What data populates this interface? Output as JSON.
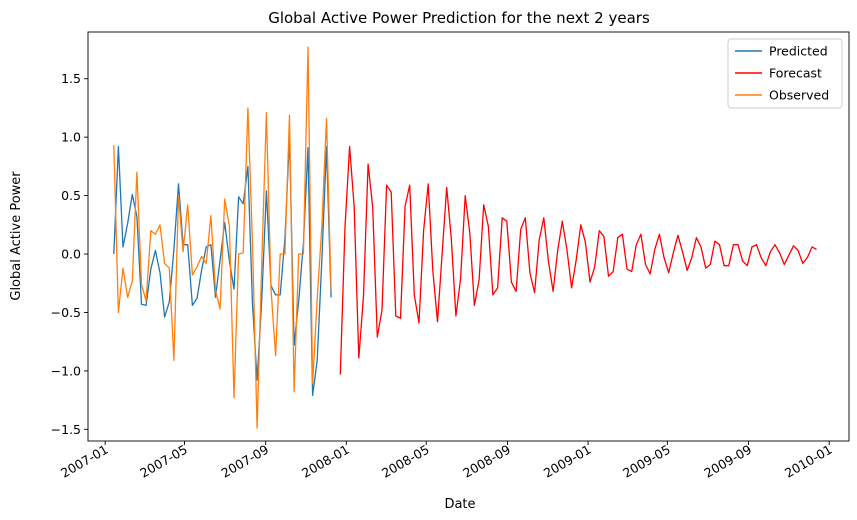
{
  "chart_data": {
    "type": "line",
    "title": "Global Active Power Prediction for the next 2 years",
    "xlabel": "Date",
    "ylabel": "Global Active Power",
    "x_axis_type": "date",
    "xlim": [
      "2006-12-06",
      "2010-01-31"
    ],
    "ylim": [
      -1.6,
      1.9
    ],
    "x_ticks": [
      "2007-01-01",
      "2007-05-01",
      "2007-09-01",
      "2008-01-01",
      "2008-05-01",
      "2008-09-01",
      "2009-01-01",
      "2009-05-01",
      "2009-09-01",
      "2010-01-01"
    ],
    "x_tick_labels": [
      "2007-01",
      "2007-05",
      "2007-09",
      "2008-01",
      "2008-05",
      "2008-09",
      "2009-01",
      "2009-05",
      "2009-09",
      "2010-01"
    ],
    "y_ticks": [
      -1.5,
      -1.0,
      -0.5,
      0.0,
      0.5,
      1.0,
      1.5
    ],
    "y_tick_labels": [
      "−1.5",
      "−1.0",
      "−0.5",
      "0.0",
      "0.5",
      "1.0",
      "1.5"
    ],
    "grid": false,
    "legend_position": "top-right",
    "series": [
      {
        "name": "Predicted",
        "color": "#1f77b4",
        "points": [
          [
            "2007-01-14",
            0.0
          ],
          [
            "2007-01-21",
            0.92
          ],
          [
            "2007-01-28",
            0.06
          ],
          [
            "2007-02-04",
            0.26
          ],
          [
            "2007-02-11",
            0.51
          ],
          [
            "2007-02-18",
            0.32
          ],
          [
            "2007-02-25",
            -0.43
          ],
          [
            "2007-03-04",
            -0.44
          ],
          [
            "2007-03-11",
            -0.13
          ],
          [
            "2007-03-18",
            0.03
          ],
          [
            "2007-03-25",
            -0.16
          ],
          [
            "2007-04-01",
            -0.54
          ],
          [
            "2007-04-08",
            -0.41
          ],
          [
            "2007-04-15",
            0.04
          ],
          [
            "2007-04-22",
            0.6
          ],
          [
            "2007-04-29",
            0.08
          ],
          [
            "2007-05-06",
            0.08
          ],
          [
            "2007-05-13",
            -0.44
          ],
          [
            "2007-05-20",
            -0.38
          ],
          [
            "2007-05-27",
            -0.14
          ],
          [
            "2007-06-03",
            0.06
          ],
          [
            "2007-06-10",
            0.08
          ],
          [
            "2007-06-17",
            -0.37
          ],
          [
            "2007-06-24",
            -0.05
          ],
          [
            "2007-07-01",
            0.27
          ],
          [
            "2007-07-08",
            -0.06
          ],
          [
            "2007-07-15",
            -0.3
          ],
          [
            "2007-07-22",
            0.49
          ],
          [
            "2007-07-29",
            0.43
          ],
          [
            "2007-08-05",
            0.75
          ],
          [
            "2007-08-12",
            -0.43
          ],
          [
            "2007-08-19",
            -1.08
          ],
          [
            "2007-08-26",
            -0.4
          ],
          [
            "2007-09-02",
            0.54
          ],
          [
            "2007-09-09",
            -0.27
          ],
          [
            "2007-09-16",
            -0.35
          ],
          [
            "2007-09-23",
            -0.35
          ],
          [
            "2007-09-30",
            0.13
          ],
          [
            "2007-10-07",
            1.0
          ],
          [
            "2007-10-14",
            -0.78
          ],
          [
            "2007-10-21",
            -0.4
          ],
          [
            "2007-10-28",
            0.09
          ],
          [
            "2007-11-04",
            0.91
          ],
          [
            "2007-11-11",
            -1.21
          ],
          [
            "2007-11-18",
            -0.91
          ],
          [
            "2007-11-25",
            -0.06
          ],
          [
            "2007-12-02",
            0.92
          ],
          [
            "2007-12-09",
            -0.37
          ]
        ]
      },
      {
        "name": "Forecast",
        "color": "#ff0000",
        "points": [
          [
            "2007-12-23",
            -1.03
          ],
          [
            "2007-12-30",
            0.23
          ],
          [
            "2008-01-06",
            0.92
          ],
          [
            "2008-01-13",
            0.4
          ],
          [
            "2008-01-20",
            -0.89
          ],
          [
            "2008-01-27",
            -0.36
          ],
          [
            "2008-02-03",
            0.77
          ],
          [
            "2008-02-10",
            0.4
          ],
          [
            "2008-02-17",
            -0.71
          ],
          [
            "2008-02-24",
            -0.48
          ],
          [
            "2008-03-02",
            0.59
          ],
          [
            "2008-03-09",
            0.53
          ],
          [
            "2008-03-16",
            -0.53
          ],
          [
            "2008-03-23",
            -0.55
          ],
          [
            "2008-03-30",
            0.41
          ],
          [
            "2008-04-06",
            0.59
          ],
          [
            "2008-04-13",
            -0.35
          ],
          [
            "2008-04-20",
            -0.59
          ],
          [
            "2008-04-27",
            0.2
          ],
          [
            "2008-05-04",
            0.6
          ],
          [
            "2008-05-11",
            -0.14
          ],
          [
            "2008-05-18",
            -0.58
          ],
          [
            "2008-05-25",
            0.0
          ],
          [
            "2008-06-01",
            0.57
          ],
          [
            "2008-06-08",
            0.13
          ],
          [
            "2008-06-15",
            -0.53
          ],
          [
            "2008-06-22",
            -0.21
          ],
          [
            "2008-06-29",
            0.5
          ],
          [
            "2008-07-06",
            0.18
          ],
          [
            "2008-07-13",
            -0.44
          ],
          [
            "2008-07-20",
            -0.22
          ],
          [
            "2008-07-27",
            0.42
          ],
          [
            "2008-08-03",
            0.24
          ],
          [
            "2008-08-10",
            -0.35
          ],
          [
            "2008-08-17",
            -0.29
          ],
          [
            "2008-08-24",
            0.31
          ],
          [
            "2008-08-31",
            0.28
          ],
          [
            "2008-09-07",
            -0.24
          ],
          [
            "2008-09-14",
            -0.32
          ],
          [
            "2008-09-21",
            0.21
          ],
          [
            "2008-09-28",
            0.31
          ],
          [
            "2008-10-05",
            -0.16
          ],
          [
            "2008-10-12",
            -0.33
          ],
          [
            "2008-10-19",
            0.12
          ],
          [
            "2008-10-26",
            0.31
          ],
          [
            "2008-11-02",
            -0.06
          ],
          [
            "2008-11-09",
            -0.32
          ],
          [
            "2008-11-16",
            0.03
          ],
          [
            "2008-11-23",
            0.28
          ],
          [
            "2008-11-30",
            0.04
          ],
          [
            "2008-12-07",
            -0.29
          ],
          [
            "2008-12-14",
            -0.05
          ],
          [
            "2008-12-21",
            0.25
          ],
          [
            "2008-12-28",
            0.1
          ],
          [
            "2009-01-04",
            -0.24
          ],
          [
            "2009-01-11",
            -0.11
          ],
          [
            "2009-01-18",
            0.2
          ],
          [
            "2009-01-25",
            0.15
          ],
          [
            "2009-02-01",
            -0.19
          ],
          [
            "2009-02-08",
            -0.15
          ],
          [
            "2009-02-15",
            0.14
          ],
          [
            "2009-02-22",
            0.17
          ],
          [
            "2009-03-01",
            -0.13
          ],
          [
            "2009-03-08",
            -0.15
          ],
          [
            "2009-03-15",
            0.08
          ],
          [
            "2009-03-22",
            0.17
          ],
          [
            "2009-03-29",
            -0.09
          ],
          [
            "2009-04-05",
            -0.17
          ],
          [
            "2009-04-12",
            0.04
          ],
          [
            "2009-04-19",
            0.17
          ],
          [
            "2009-04-26",
            -0.03
          ],
          [
            "2009-05-03",
            -0.16
          ],
          [
            "2009-05-10",
            0.01
          ],
          [
            "2009-05-17",
            0.16
          ],
          [
            "2009-05-24",
            0.02
          ],
          [
            "2009-05-31",
            -0.14
          ],
          [
            "2009-06-07",
            -0.03
          ],
          [
            "2009-06-14",
            0.14
          ],
          [
            "2009-06-21",
            0.06
          ],
          [
            "2009-06-28",
            -0.12
          ],
          [
            "2009-07-05",
            -0.09
          ],
          [
            "2009-07-12",
            0.11
          ],
          [
            "2009-07-19",
            0.08
          ],
          [
            "2009-07-26",
            -0.1
          ],
          [
            "2009-08-02",
            -0.1
          ],
          [
            "2009-08-09",
            0.08
          ],
          [
            "2009-08-16",
            0.08
          ],
          [
            "2009-08-23",
            -0.06
          ],
          [
            "2009-08-30",
            -0.1
          ],
          [
            "2009-09-06",
            0.06
          ],
          [
            "2009-09-13",
            0.08
          ],
          [
            "2009-09-20",
            -0.03
          ],
          [
            "2009-09-27",
            -0.1
          ],
          [
            "2009-10-04",
            0.02
          ],
          [
            "2009-10-11",
            0.08
          ],
          [
            "2009-10-18",
            0.01
          ],
          [
            "2009-10-25",
            -0.09
          ],
          [
            "2009-11-01",
            -0.01
          ],
          [
            "2009-11-08",
            0.07
          ],
          [
            "2009-11-15",
            0.03
          ],
          [
            "2009-11-22",
            -0.08
          ],
          [
            "2009-11-29",
            -0.03
          ],
          [
            "2009-12-06",
            0.06
          ],
          [
            "2009-12-13",
            0.04
          ]
        ]
      },
      {
        "name": "Observed",
        "color": "#ff7f0e",
        "points": [
          [
            "2007-01-14",
            0.93
          ],
          [
            "2007-01-21",
            -0.5
          ],
          [
            "2007-01-28",
            -0.12
          ],
          [
            "2007-02-04",
            -0.37
          ],
          [
            "2007-02-11",
            -0.23
          ],
          [
            "2007-02-18",
            0.7
          ],
          [
            "2007-02-25",
            -0.26
          ],
          [
            "2007-03-04",
            -0.4
          ],
          [
            "2007-03-11",
            0.2
          ],
          [
            "2007-03-18",
            0.17
          ],
          [
            "2007-03-25",
            0.25
          ],
          [
            "2007-04-01",
            -0.08
          ],
          [
            "2007-04-08",
            -0.12
          ],
          [
            "2007-04-15",
            -0.91
          ],
          [
            "2007-04-22",
            0.5
          ],
          [
            "2007-04-29",
            0.02
          ],
          [
            "2007-05-06",
            0.42
          ],
          [
            "2007-05-13",
            -0.18
          ],
          [
            "2007-05-20",
            -0.11
          ],
          [
            "2007-05-27",
            -0.02
          ],
          [
            "2007-06-03",
            -0.08
          ],
          [
            "2007-06-10",
            0.33
          ],
          [
            "2007-06-17",
            -0.31
          ],
          [
            "2007-06-24",
            -0.47
          ],
          [
            "2007-07-01",
            0.47
          ],
          [
            "2007-07-08",
            0.24
          ],
          [
            "2007-07-15",
            -1.23
          ],
          [
            "2007-07-22",
            0.0
          ],
          [
            "2007-07-29",
            0.01
          ],
          [
            "2007-08-05",
            1.25
          ],
          [
            "2007-08-12",
            0.09
          ],
          [
            "2007-08-19",
            -1.49
          ],
          [
            "2007-08-26",
            -0.09
          ],
          [
            "2007-09-02",
            1.21
          ],
          [
            "2007-09-09",
            -0.3
          ],
          [
            "2007-09-16",
            -0.87
          ],
          [
            "2007-09-23",
            0.0
          ],
          [
            "2007-09-30",
            0.0
          ],
          [
            "2007-10-07",
            1.19
          ],
          [
            "2007-10-14",
            -1.18
          ],
          [
            "2007-10-21",
            0.0
          ],
          [
            "2007-10-28",
            0.0
          ],
          [
            "2007-11-04",
            1.77
          ],
          [
            "2007-11-11",
            -1.11
          ],
          [
            "2007-11-18",
            -0.38
          ],
          [
            "2007-11-25",
            0.23
          ],
          [
            "2007-12-02",
            1.16
          ],
          [
            "2007-12-09",
            -0.31
          ]
        ]
      }
    ]
  }
}
